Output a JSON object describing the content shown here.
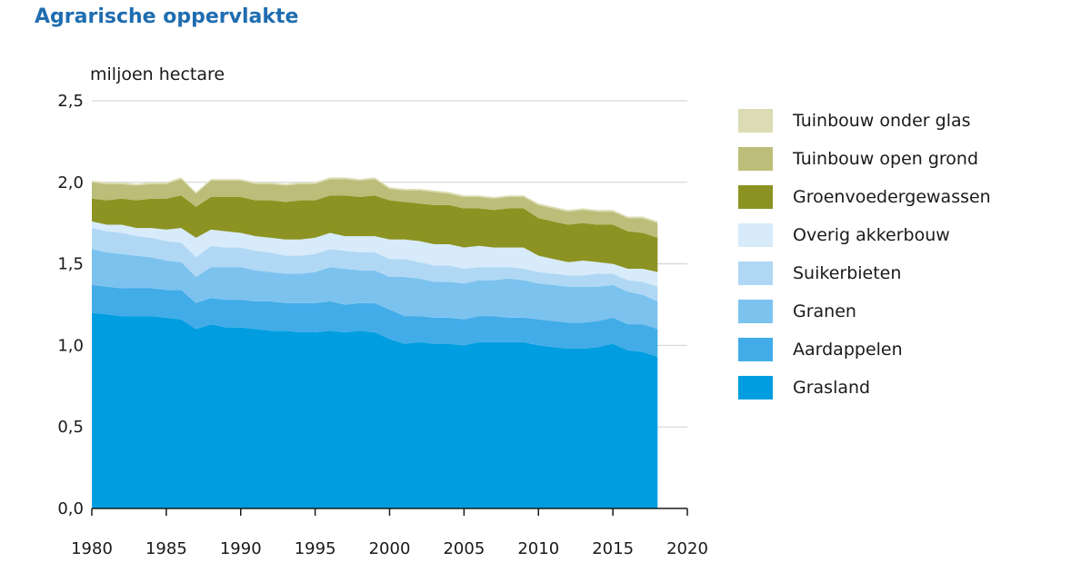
{
  "title": "Agrarische oppervlakte",
  "chart_data": {
    "type": "area",
    "stacked": true,
    "ylabel": "miljoen hectare",
    "xlim": [
      1980,
      2020
    ],
    "ylim": [
      0,
      2.5
    ],
    "x_ticks": [
      "1980",
      "1985",
      "1990",
      "1995",
      "2000",
      "2005",
      "2010",
      "2015",
      "2020"
    ],
    "y_ticks": [
      "0,0",
      "0,5",
      "1,0",
      "1,5",
      "2,0",
      "2,5"
    ],
    "grid": true,
    "legend_position": "right",
    "x": [
      1980,
      1981,
      1982,
      1983,
      1984,
      1985,
      1986,
      1987,
      1988,
      1989,
      1990,
      1991,
      1992,
      1993,
      1994,
      1995,
      1996,
      1997,
      1998,
      1999,
      2000,
      2001,
      2002,
      2003,
      2004,
      2005,
      2006,
      2007,
      2008,
      2009,
      2010,
      2011,
      2012,
      2013,
      2014,
      2015,
      2016,
      2017,
      2018
    ],
    "series": [
      {
        "name": "Grasland",
        "color": "#009ee0",
        "values": [
          1.2,
          1.19,
          1.18,
          1.18,
          1.18,
          1.17,
          1.16,
          1.1,
          1.13,
          1.11,
          1.11,
          1.1,
          1.09,
          1.09,
          1.08,
          1.08,
          1.09,
          1.08,
          1.09,
          1.08,
          1.04,
          1.01,
          1.02,
          1.01,
          1.01,
          1.0,
          1.02,
          1.02,
          1.02,
          1.02,
          1.0,
          0.99,
          0.98,
          0.98,
          0.99,
          1.01,
          0.97,
          0.96,
          0.93
        ]
      },
      {
        "name": "Aardappelen",
        "color": "#42ace8",
        "values": [
          0.17,
          0.17,
          0.17,
          0.17,
          0.17,
          0.17,
          0.18,
          0.16,
          0.16,
          0.17,
          0.17,
          0.17,
          0.18,
          0.17,
          0.18,
          0.18,
          0.18,
          0.17,
          0.17,
          0.18,
          0.18,
          0.17,
          0.16,
          0.16,
          0.16,
          0.16,
          0.16,
          0.16,
          0.15,
          0.15,
          0.16,
          0.16,
          0.16,
          0.16,
          0.16,
          0.16,
          0.16,
          0.17,
          0.17
        ]
      },
      {
        "name": "Granen",
        "color": "#7cc2ef",
        "values": [
          0.22,
          0.21,
          0.21,
          0.2,
          0.19,
          0.18,
          0.17,
          0.16,
          0.19,
          0.2,
          0.2,
          0.19,
          0.18,
          0.18,
          0.18,
          0.19,
          0.21,
          0.22,
          0.2,
          0.2,
          0.2,
          0.24,
          0.23,
          0.22,
          0.22,
          0.22,
          0.22,
          0.22,
          0.24,
          0.23,
          0.22,
          0.22,
          0.22,
          0.22,
          0.21,
          0.2,
          0.2,
          0.18,
          0.17
        ]
      },
      {
        "name": "Suikerbieten",
        "color": "#b0d8f4",
        "values": [
          0.13,
          0.13,
          0.13,
          0.12,
          0.12,
          0.12,
          0.12,
          0.12,
          0.13,
          0.12,
          0.12,
          0.12,
          0.12,
          0.11,
          0.11,
          0.11,
          0.11,
          0.11,
          0.11,
          0.11,
          0.11,
          0.11,
          0.1,
          0.1,
          0.1,
          0.09,
          0.08,
          0.08,
          0.07,
          0.07,
          0.07,
          0.07,
          0.07,
          0.07,
          0.08,
          0.07,
          0.07,
          0.08,
          0.09
        ]
      },
      {
        "name": "Overig akkerbouw",
        "color": "#d7ebfa",
        "values": [
          0.04,
          0.04,
          0.05,
          0.05,
          0.06,
          0.07,
          0.09,
          0.12,
          0.1,
          0.1,
          0.09,
          0.09,
          0.09,
          0.1,
          0.1,
          0.1,
          0.1,
          0.09,
          0.1,
          0.1,
          0.12,
          0.12,
          0.13,
          0.13,
          0.13,
          0.13,
          0.13,
          0.12,
          0.12,
          0.13,
          0.1,
          0.09,
          0.08,
          0.09,
          0.07,
          0.06,
          0.07,
          0.08,
          0.09
        ]
      },
      {
        "name": "Groenvoedergewassen",
        "color": "#8c9322",
        "values": [
          0.14,
          0.15,
          0.16,
          0.17,
          0.18,
          0.19,
          0.2,
          0.19,
          0.2,
          0.21,
          0.22,
          0.22,
          0.23,
          0.23,
          0.24,
          0.23,
          0.23,
          0.25,
          0.24,
          0.25,
          0.24,
          0.23,
          0.23,
          0.24,
          0.24,
          0.24,
          0.23,
          0.23,
          0.24,
          0.24,
          0.23,
          0.23,
          0.23,
          0.23,
          0.23,
          0.24,
          0.23,
          0.22,
          0.21
        ]
      },
      {
        "name": "Tuinbouw open grond",
        "color": "#bcbd79",
        "values": [
          0.1,
          0.1,
          0.09,
          0.09,
          0.09,
          0.09,
          0.1,
          0.08,
          0.1,
          0.1,
          0.1,
          0.1,
          0.1,
          0.1,
          0.1,
          0.1,
          0.1,
          0.1,
          0.1,
          0.1,
          0.07,
          0.07,
          0.08,
          0.08,
          0.07,
          0.07,
          0.07,
          0.07,
          0.07,
          0.07,
          0.08,
          0.08,
          0.08,
          0.08,
          0.08,
          0.08,
          0.08,
          0.09,
          0.09
        ]
      },
      {
        "name": "Tuinbouw onder glas",
        "color": "#dcdcb4",
        "values": [
          0.01,
          0.01,
          0.01,
          0.01,
          0.01,
          0.01,
          0.01,
          0.01,
          0.01,
          0.01,
          0.01,
          0.01,
          0.01,
          0.01,
          0.01,
          0.01,
          0.01,
          0.01,
          0.01,
          0.01,
          0.01,
          0.01,
          0.01,
          0.01,
          0.01,
          0.01,
          0.01,
          0.01,
          0.01,
          0.01,
          0.01,
          0.01,
          0.01,
          0.01,
          0.01,
          0.01,
          0.01,
          0.01,
          0.01
        ]
      }
    ]
  }
}
